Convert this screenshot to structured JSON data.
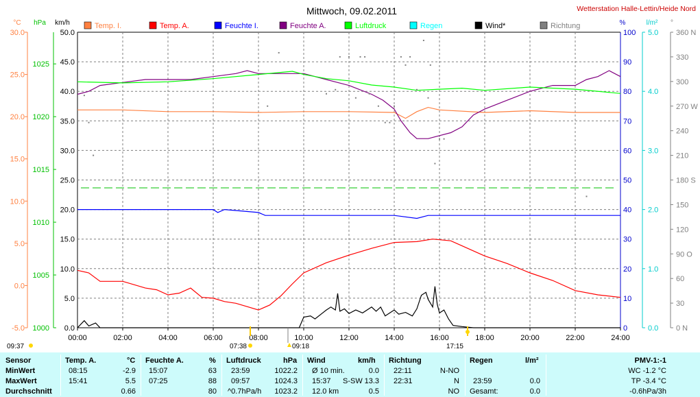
{
  "header": {
    "title": "Mittwoch, 09.02.2011",
    "station": "Wetterstation Halle-Lettin/Heide Nord"
  },
  "axes": {
    "temp_unit": "°C",
    "pressure_unit": "hPa",
    "wind_unit": "km/h",
    "humidity_unit": "%",
    "rain_unit": "l/m²",
    "direction_unit": "°",
    "temp_ticks": [
      "30.0",
      "25.0",
      "20.0",
      "15.0",
      "10.0",
      "5.0",
      "0.0",
      "-5.0"
    ],
    "pressure_ticks": [
      "1025",
      "1020",
      "1015",
      "1010",
      "1005",
      "1000"
    ],
    "wind_ticks": [
      "50.0",
      "45.0",
      "40.0",
      "35.0",
      "30.0",
      "25.0",
      "20.0",
      "15.0",
      "10.0",
      "5.0",
      "0.0"
    ],
    "humidity_ticks": [
      "100",
      "90",
      "80",
      "70",
      "60",
      "50",
      "40",
      "30",
      "20",
      "10",
      "0"
    ],
    "rain_ticks": [
      "5.0",
      "4.0",
      "3.0",
      "2.0",
      "1.0",
      "0.0"
    ],
    "direction_ticks": [
      "360 N",
      "330",
      "300",
      "270 W",
      "240",
      "210",
      "180 S",
      "150",
      "120",
      "90 O",
      "60",
      "30",
      "0 N"
    ],
    "time_ticks": [
      "00:00",
      "02:00",
      "04:00",
      "06:00",
      "08:00",
      "10:00",
      "12:00",
      "14:00",
      "16:00",
      "18:00",
      "20:00",
      "22:00",
      "24:00"
    ]
  },
  "legend": [
    {
      "label": "Temp. I.",
      "color": "#ff8040"
    },
    {
      "label": "Temp. A.",
      "color": "#ff0000"
    },
    {
      "label": "Feuchte I.",
      "color": "#0000ff"
    },
    {
      "label": "Feuchte A.",
      "color": "#800080"
    },
    {
      "label": "Luftdruck",
      "color": "#00ff00"
    },
    {
      "label": "Regen",
      "color": "#00ffff"
    },
    {
      "label": "Wind*",
      "color": "#000000"
    },
    {
      "label": "Richtung",
      "color": "#808080"
    }
  ],
  "sun_markers": {
    "sunrise": "07:38",
    "sunset": "17:15",
    "moonrise": "09:37",
    "moonset": "09:18"
  },
  "chart_data": {
    "type": "line",
    "title": "Mittwoch, 09.02.2011",
    "xlim": [
      0,
      24
    ],
    "grid": true,
    "series": [
      {
        "name": "Temp. I.",
        "axis": "temp",
        "x": [
          0,
          2,
          4,
          6,
          8,
          10,
          12,
          14,
          14.5,
          15,
          15.5,
          16,
          18,
          20,
          22,
          24
        ],
        "values": [
          20.8,
          20.8,
          20.6,
          20.6,
          20.5,
          20.6,
          20.6,
          20.5,
          19.8,
          20.6,
          21.1,
          20.8,
          20.5,
          20.7,
          20.5,
          20.5
        ]
      },
      {
        "name": "Temp. A.",
        "axis": "temp",
        "x": [
          0,
          0.5,
          1,
          1.5,
          2,
          3,
          3.5,
          4,
          4.5,
          5,
          5.5,
          6,
          6.5,
          7,
          7.5,
          8,
          8.5,
          9,
          9.5,
          10,
          11,
          12,
          13,
          14,
          15,
          15.7,
          16.5,
          17,
          18,
          19,
          20,
          21,
          22,
          23,
          24
        ],
        "values": [
          1.8,
          1.5,
          0.5,
          0.5,
          0.5,
          -0.3,
          -0.5,
          -1.1,
          -0.9,
          -0.3,
          -1.4,
          -1.5,
          -1.9,
          -2.1,
          -2.5,
          -2.9,
          -2.3,
          -1.2,
          0.2,
          1.5,
          2.7,
          3.6,
          4.4,
          5.1,
          5.2,
          5.5,
          5.3,
          4.7,
          3.5,
          2.6,
          1.5,
          0.6,
          -0.6,
          -1.1,
          -1.4
        ]
      },
      {
        "name": "Feuchte I.",
        "axis": "humidity",
        "x": [
          0,
          6,
          6.2,
          6.5,
          8,
          8.3,
          9,
          10,
          12,
          13,
          14,
          15,
          15.5,
          16,
          17,
          19,
          20,
          22,
          24
        ],
        "values": [
          40,
          40,
          39,
          40,
          39,
          38,
          38,
          38,
          38,
          38,
          38,
          37,
          38,
          38,
          38,
          38,
          38,
          38,
          38
        ]
      },
      {
        "name": "Feuchte A.",
        "axis": "humidity",
        "x": [
          0,
          0.5,
          1,
          2,
          3,
          4,
          5,
          6,
          7,
          7.5,
          8,
          9,
          10,
          11,
          11.5,
          12,
          13,
          13.5,
          14,
          14.3,
          14.5,
          14.7,
          15,
          15.5,
          16,
          16.5,
          17,
          17.5,
          18,
          19,
          20,
          21,
          22,
          22.5,
          23,
          23.5,
          24
        ],
        "values": [
          79,
          80,
          82,
          83,
          84,
          84,
          84,
          85,
          86,
          87,
          86,
          86,
          86,
          84,
          83,
          82,
          79,
          77,
          74,
          70,
          68,
          66,
          64,
          64,
          65,
          66,
          68,
          72,
          74,
          77,
          80,
          82,
          82,
          84,
          85,
          87,
          85
        ]
      },
      {
        "name": "Luftdruck",
        "axis": "pressure",
        "x": [
          0,
          2,
          4,
          6,
          8,
          9.5,
          10,
          11,
          12,
          13,
          14,
          15,
          16,
          17,
          18,
          20,
          22,
          24
        ],
        "values": [
          1023.3,
          1023.2,
          1023.3,
          1023.6,
          1024.0,
          1024.3,
          1024.0,
          1023.6,
          1023.4,
          1023.0,
          1022.8,
          1022.5,
          1022.6,
          1022.7,
          1022.5,
          1022.8,
          1022.6,
          1022.2
        ]
      },
      {
        "name": "Wind*",
        "axis": "wind",
        "x": [
          0,
          0.3,
          0.5,
          0.8,
          1,
          9.8,
          10,
          10.3,
          10.5,
          10.8,
          11,
          11.2,
          11.4,
          11.5,
          11.6,
          11.8,
          12,
          12.3,
          12.6,
          13,
          13.2,
          13.4,
          13.6,
          14,
          14.2,
          14.5,
          14.8,
          15,
          15.2,
          15.4,
          15.5,
          15.7,
          15.8,
          15.9,
          16,
          16.2,
          16.4,
          16.6,
          17,
          17.5,
          24
        ],
        "values": [
          0,
          1.2,
          0.3,
          0.8,
          0,
          0,
          1.8,
          2.0,
          1.5,
          2.4,
          3.0,
          3.5,
          3.0,
          5.8,
          2.8,
          3.2,
          2.4,
          3.0,
          2.5,
          3.5,
          2.8,
          3.5,
          2.0,
          3.0,
          2.3,
          2.6,
          2.0,
          3.2,
          5.5,
          6.0,
          4.8,
          3.5,
          7.0,
          4.0,
          2.5,
          3.0,
          1.5,
          0.4,
          0.2,
          0,
          0
        ]
      },
      {
        "name": "Richtung",
        "axis": "direction",
        "type": "scatter",
        "x": [
          0.3,
          0.5,
          0.7,
          8.4,
          8.9,
          11,
          11.4,
          11.6,
          12,
          12.3,
          12.5,
          12.7,
          12.9,
          13.3,
          13.6,
          13.8,
          14,
          14.3,
          14.5,
          14.7,
          15,
          15.3,
          15.5,
          15.6,
          15.8,
          16,
          16.2,
          22.5
        ],
        "values": [
          283,
          250,
          210,
          270,
          335,
          285,
          290,
          330,
          330,
          280,
          330,
          330,
          285,
          270,
          250,
          250,
          270,
          330,
          320,
          330,
          290,
          350,
          280,
          320,
          200,
          230,
          230,
          160
        ]
      }
    ]
  },
  "summary": {
    "headers": {
      "sensor": "Sensor",
      "temp": "Temp. A.",
      "temp_unit": "°C",
      "hum": "Feuchte A.",
      "hum_unit": "%",
      "press": "Luftdruck",
      "press_unit": "hPa",
      "wind": "Wind",
      "wind_unit": "km/h",
      "dir": "Richtung",
      "rain": "Regen",
      "rain_unit": "l/m²",
      "pmv": "PMV-1:-1"
    },
    "rows": [
      {
        "label": "MinWert",
        "temp_time": "08:15",
        "temp_val": "-2.9",
        "hum_time": "15:07",
        "hum_val": "63",
        "press_time": "23:59",
        "press_val": "1022.2",
        "wind_label": "Ø 10 min.",
        "wind_val": "0.0",
        "dir_time": "22:11",
        "dir_val": "N-NO",
        "rain_time": "",
        "rain_val": "",
        "pmv": "WC -1.2 °C"
      },
      {
        "label": "MaxWert",
        "temp_time": "15:41",
        "temp_val": "5.5",
        "hum_time": "07:25",
        "hum_val": "88",
        "press_time": "09:57",
        "press_val": "1024.3",
        "wind_label": "15:37",
        "wind_dir": "S-SW",
        "wind_val": "13.3",
        "dir_time": "22:31",
        "dir_val": "N",
        "rain_time": "23:59",
        "rain_val": "0.0",
        "pmv": "TP -3.4 °C"
      },
      {
        "label": "Durchschnitt",
        "temp_time": "",
        "temp_val": "0.66",
        "hum_time": "",
        "hum_val": "80",
        "press_time": "^0.7hPa/h",
        "press_val": "1023.2",
        "wind_label": "12.0 km",
        "wind_val": "0.5",
        "dir_time": "",
        "dir_val": "NO",
        "rain_time": "Gesamt:",
        "rain_val": "0.0",
        "pmv": "-0.6hPa/3h"
      }
    ]
  }
}
